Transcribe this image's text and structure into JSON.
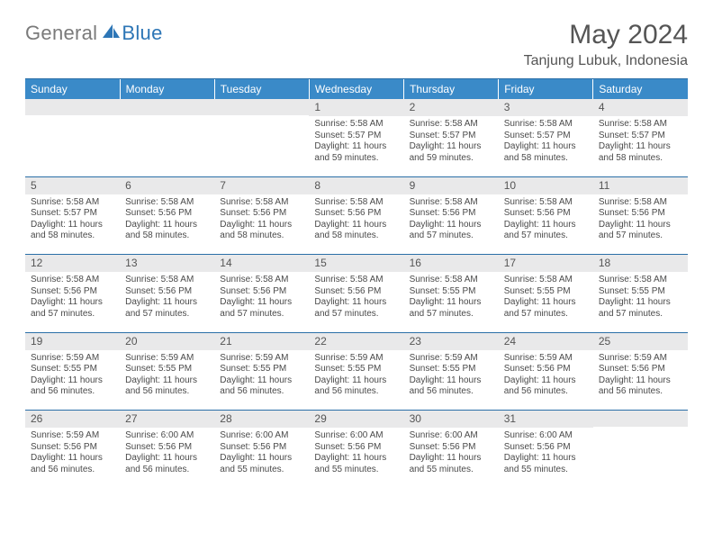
{
  "brand": {
    "part1": "General",
    "part2": "Blue"
  },
  "title": "May 2024",
  "location": "Tanjung Lubuk, Indonesia",
  "colors": {
    "header_bg": "#3a8ac8",
    "rule": "#2b6fa8",
    "daynum_bg": "#e9e9ea",
    "text": "#4a4a4a",
    "logo_gray": "#7a7a7a",
    "logo_blue": "#2d76b6"
  },
  "weekdays": [
    "Sunday",
    "Monday",
    "Tuesday",
    "Wednesday",
    "Thursday",
    "Friday",
    "Saturday"
  ],
  "weeks": [
    [
      null,
      null,
      null,
      {
        "n": "1",
        "sr": "5:58 AM",
        "ss": "5:57 PM",
        "dl": "11 hours and 59 minutes."
      },
      {
        "n": "2",
        "sr": "5:58 AM",
        "ss": "5:57 PM",
        "dl": "11 hours and 59 minutes."
      },
      {
        "n": "3",
        "sr": "5:58 AM",
        "ss": "5:57 PM",
        "dl": "11 hours and 58 minutes."
      },
      {
        "n": "4",
        "sr": "5:58 AM",
        "ss": "5:57 PM",
        "dl": "11 hours and 58 minutes."
      }
    ],
    [
      {
        "n": "5",
        "sr": "5:58 AM",
        "ss": "5:57 PM",
        "dl": "11 hours and 58 minutes."
      },
      {
        "n": "6",
        "sr": "5:58 AM",
        "ss": "5:56 PM",
        "dl": "11 hours and 58 minutes."
      },
      {
        "n": "7",
        "sr": "5:58 AM",
        "ss": "5:56 PM",
        "dl": "11 hours and 58 minutes."
      },
      {
        "n": "8",
        "sr": "5:58 AM",
        "ss": "5:56 PM",
        "dl": "11 hours and 58 minutes."
      },
      {
        "n": "9",
        "sr": "5:58 AM",
        "ss": "5:56 PM",
        "dl": "11 hours and 57 minutes."
      },
      {
        "n": "10",
        "sr": "5:58 AM",
        "ss": "5:56 PM",
        "dl": "11 hours and 57 minutes."
      },
      {
        "n": "11",
        "sr": "5:58 AM",
        "ss": "5:56 PM",
        "dl": "11 hours and 57 minutes."
      }
    ],
    [
      {
        "n": "12",
        "sr": "5:58 AM",
        "ss": "5:56 PM",
        "dl": "11 hours and 57 minutes."
      },
      {
        "n": "13",
        "sr": "5:58 AM",
        "ss": "5:56 PM",
        "dl": "11 hours and 57 minutes."
      },
      {
        "n": "14",
        "sr": "5:58 AM",
        "ss": "5:56 PM",
        "dl": "11 hours and 57 minutes."
      },
      {
        "n": "15",
        "sr": "5:58 AM",
        "ss": "5:56 PM",
        "dl": "11 hours and 57 minutes."
      },
      {
        "n": "16",
        "sr": "5:58 AM",
        "ss": "5:55 PM",
        "dl": "11 hours and 57 minutes."
      },
      {
        "n": "17",
        "sr": "5:58 AM",
        "ss": "5:55 PM",
        "dl": "11 hours and 57 minutes."
      },
      {
        "n": "18",
        "sr": "5:58 AM",
        "ss": "5:55 PM",
        "dl": "11 hours and 57 minutes."
      }
    ],
    [
      {
        "n": "19",
        "sr": "5:59 AM",
        "ss": "5:55 PM",
        "dl": "11 hours and 56 minutes."
      },
      {
        "n": "20",
        "sr": "5:59 AM",
        "ss": "5:55 PM",
        "dl": "11 hours and 56 minutes."
      },
      {
        "n": "21",
        "sr": "5:59 AM",
        "ss": "5:55 PM",
        "dl": "11 hours and 56 minutes."
      },
      {
        "n": "22",
        "sr": "5:59 AM",
        "ss": "5:55 PM",
        "dl": "11 hours and 56 minutes."
      },
      {
        "n": "23",
        "sr": "5:59 AM",
        "ss": "5:55 PM",
        "dl": "11 hours and 56 minutes."
      },
      {
        "n": "24",
        "sr": "5:59 AM",
        "ss": "5:56 PM",
        "dl": "11 hours and 56 minutes."
      },
      {
        "n": "25",
        "sr": "5:59 AM",
        "ss": "5:56 PM",
        "dl": "11 hours and 56 minutes."
      }
    ],
    [
      {
        "n": "26",
        "sr": "5:59 AM",
        "ss": "5:56 PM",
        "dl": "11 hours and 56 minutes."
      },
      {
        "n": "27",
        "sr": "6:00 AM",
        "ss": "5:56 PM",
        "dl": "11 hours and 56 minutes."
      },
      {
        "n": "28",
        "sr": "6:00 AM",
        "ss": "5:56 PM",
        "dl": "11 hours and 55 minutes."
      },
      {
        "n": "29",
        "sr": "6:00 AM",
        "ss": "5:56 PM",
        "dl": "11 hours and 55 minutes."
      },
      {
        "n": "30",
        "sr": "6:00 AM",
        "ss": "5:56 PM",
        "dl": "11 hours and 55 minutes."
      },
      {
        "n": "31",
        "sr": "6:00 AM",
        "ss": "5:56 PM",
        "dl": "11 hours and 55 minutes."
      },
      null
    ]
  ],
  "labels": {
    "sunrise": "Sunrise:",
    "sunset": "Sunset:",
    "daylight": "Daylight:"
  }
}
